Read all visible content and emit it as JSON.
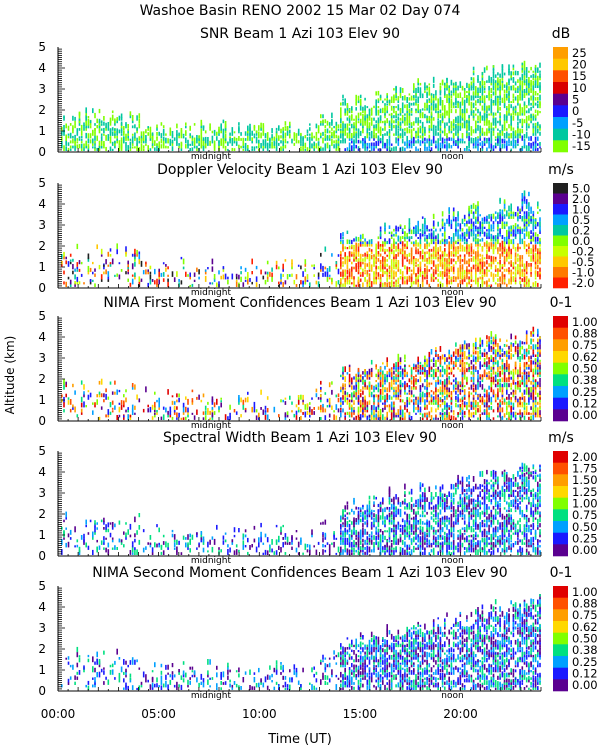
{
  "header": {
    "line1": "Washoe Basin RENO 2002  15 Mar 02 Day 074"
  },
  "shared": {
    "ylabel": "Altitude (km)",
    "xlabel": "Time (UT)",
    "x_ticks": [
      "00:00",
      "05:00",
      "10:00",
      "15:00",
      "20:00"
    ],
    "midnight_label": "midnight",
    "noon_label": "noon",
    "y_ticks": [
      "0",
      "1",
      "2",
      "3",
      "4",
      "5"
    ]
  },
  "chart_data": [
    {
      "type": "heatmap",
      "title": "SNR Beam 1 Azi 103 Elev 90",
      "unit": "dB",
      "colorbar_labels": [
        "25",
        "20",
        "15",
        "10",
        "5",
        "0",
        "-5",
        "-10",
        "-15"
      ],
      "colorbar_colors": [
        "#ff9e00",
        "#ffc800",
        "#ff5000",
        "#d80000",
        "#5a0090",
        "#1a1aff",
        "#00a0ff",
        "#00c8a0",
        "#80ff00"
      ],
      "xlim": [
        0,
        24
      ],
      "ylim": [
        0,
        5
      ]
    },
    {
      "type": "heatmap",
      "title": "Doppler Velocity Beam 1 Azi 103 Elev 90",
      "unit": "m/s",
      "colorbar_labels": [
        "5.0",
        "2.0",
        "1.0",
        "0.5",
        "0.2",
        "0.0",
        "-0.2",
        "-0.5",
        "-1.0",
        "-2.0"
      ],
      "colorbar_colors": [
        "#202020",
        "#5a0090",
        "#1a1aff",
        "#00a0ff",
        "#00c8a0",
        "#80ff00",
        "#c8ff00",
        "#ffc800",
        "#ff7a00",
        "#ff2000"
      ],
      "xlim": [
        0,
        24
      ],
      "ylim": [
        0,
        5
      ]
    },
    {
      "type": "heatmap",
      "title": "NIMA First Moment Confidences Beam 1 Azi 103 Elev 90",
      "unit": "0-1",
      "colorbar_labels": [
        "1.00",
        "0.88",
        "0.75",
        "0.62",
        "0.50",
        "0.38",
        "0.25",
        "0.12",
        "0.00"
      ],
      "colorbar_colors": [
        "#e00000",
        "#ff5000",
        "#ff9e00",
        "#ffd800",
        "#80ff00",
        "#00e080",
        "#00a0ff",
        "#1a1aff",
        "#5a0090"
      ],
      "xlim": [
        0,
        24
      ],
      "ylim": [
        0,
        5
      ]
    },
    {
      "type": "heatmap",
      "title": "Spectral Width Beam 1 Azi 103 Elev 90",
      "unit": "m/s",
      "colorbar_labels": [
        "2.00",
        "1.75",
        "1.50",
        "1.25",
        "1.00",
        "0.75",
        "0.50",
        "0.25",
        "0.00"
      ],
      "colorbar_colors": [
        "#e00000",
        "#ff5000",
        "#ff9e00",
        "#ffd800",
        "#80ff00",
        "#00e080",
        "#00a0ff",
        "#1a1aff",
        "#5a0090"
      ],
      "xlim": [
        0,
        24
      ],
      "ylim": [
        0,
        5
      ]
    },
    {
      "type": "heatmap",
      "title": "NIMA Second Moment Confidences Beam 1 Azi 103 Elev 90",
      "unit": "0-1",
      "colorbar_labels": [
        "1.00",
        "0.88",
        "0.75",
        "0.62",
        "0.50",
        "0.38",
        "0.25",
        "0.12",
        "0.00"
      ],
      "colorbar_colors": [
        "#e00000",
        "#ff5000",
        "#ff9e00",
        "#ffd800",
        "#80ff00",
        "#00e080",
        "#00a0ff",
        "#1a1aff",
        "#5a0090"
      ],
      "xlim": [
        0,
        24
      ],
      "ylim": [
        0,
        5
      ]
    }
  ]
}
